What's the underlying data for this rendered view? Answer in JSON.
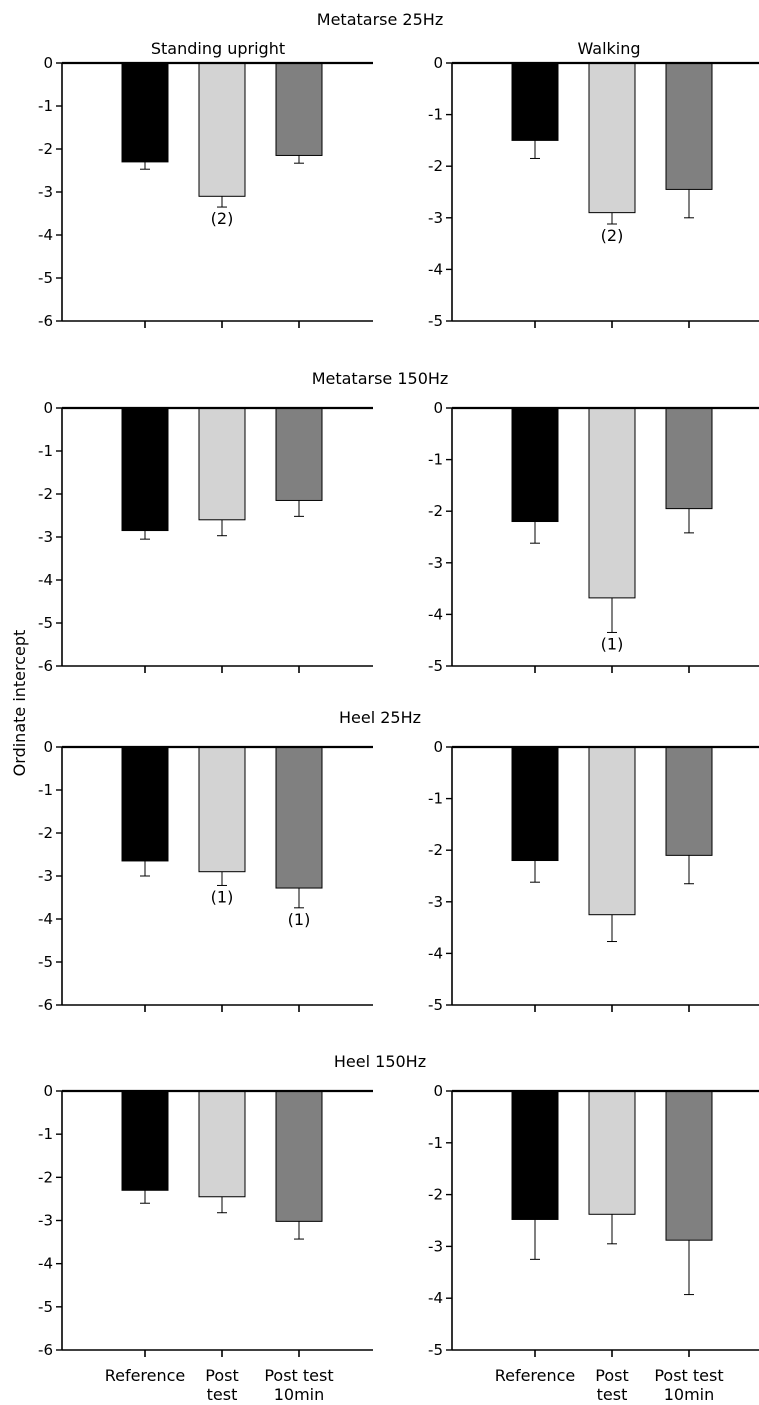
{
  "figure": {
    "ylabel": "Ordinate intercept",
    "column_titles": [
      "Standing upright",
      "Walking"
    ],
    "categories": [
      [
        "Reference"
      ],
      [
        "Post",
        "test"
      ],
      [
        "Post test",
        "10min"
      ]
    ],
    "colors": {
      "Reference": "#000000",
      "Post test": "#d3d3d3",
      "Post test 10min": "#808080"
    }
  },
  "chart_data": [
    {
      "type": "bar",
      "title": "Metatarse 25Hz",
      "subtitle": "Standing upright",
      "xlabel": "",
      "ylabel": "Ordinate intercept",
      "categories": [
        "Reference",
        "Post test",
        "Post test 10min"
      ],
      "values": [
        -2.3,
        -3.1,
        -2.15
      ],
      "error": [
        0.17,
        0.25,
        0.18
      ],
      "annotations": [
        "",
        "(2)",
        ""
      ],
      "ylim": [
        -6,
        0
      ],
      "yticks": [
        0,
        -1,
        -2,
        -3,
        -4,
        -5,
        -6
      ]
    },
    {
      "type": "bar",
      "title": "",
      "subtitle": "Walking",
      "xlabel": "",
      "ylabel": "Ordinate intercept",
      "categories": [
        "Reference",
        "Post test",
        "Post test 10min"
      ],
      "values": [
        -1.5,
        -2.9,
        -2.45
      ],
      "error": [
        0.35,
        0.22,
        0.55
      ],
      "annotations": [
        "",
        "(2)",
        ""
      ],
      "ylim": [
        -5,
        0
      ],
      "yticks": [
        0,
        -1,
        -2,
        -3,
        -4,
        -5
      ]
    },
    {
      "type": "bar",
      "title": "Metatarse 150Hz",
      "subtitle": "",
      "xlabel": "",
      "ylabel": "Ordinate intercept",
      "categories": [
        "Reference",
        "Post test",
        "Post test 10min"
      ],
      "values": [
        -2.85,
        -2.6,
        -2.15
      ],
      "error": [
        0.2,
        0.37,
        0.37
      ],
      "annotations": [
        "",
        "",
        ""
      ],
      "ylim": [
        -6,
        0
      ],
      "yticks": [
        0,
        -1,
        -2,
        -3,
        -4,
        -5,
        -6
      ]
    },
    {
      "type": "bar",
      "title": "",
      "subtitle": "",
      "xlabel": "",
      "ylabel": "Ordinate intercept",
      "categories": [
        "Reference",
        "Post test",
        "Post test 10min"
      ],
      "values": [
        -2.2,
        -3.68,
        -1.95
      ],
      "error": [
        0.42,
        0.67,
        0.47
      ],
      "annotations": [
        "",
        "(1)",
        ""
      ],
      "ylim": [
        -5,
        0
      ],
      "yticks": [
        0,
        -1,
        -2,
        -3,
        -4,
        -5
      ]
    },
    {
      "type": "bar",
      "title": "Heel 25Hz",
      "subtitle": "",
      "xlabel": "",
      "ylabel": "Ordinate intercept",
      "categories": [
        "Reference",
        "Post test",
        "Post test 10min"
      ],
      "values": [
        -2.65,
        -2.9,
        -3.28
      ],
      "error": [
        0.35,
        0.32,
        0.46
      ],
      "annotations": [
        "",
        "(1)",
        "(1)"
      ],
      "ylim": [
        -6,
        0
      ],
      "yticks": [
        0,
        -1,
        -2,
        -3,
        -4,
        -5,
        -6
      ]
    },
    {
      "type": "bar",
      "title": "",
      "subtitle": "",
      "xlabel": "",
      "ylabel": "Ordinate intercept",
      "categories": [
        "Reference",
        "Post test",
        "Post test 10min"
      ],
      "values": [
        -2.2,
        -3.25,
        -2.1
      ],
      "error": [
        0.42,
        0.52,
        0.55
      ],
      "annotations": [
        "",
        "",
        ""
      ],
      "ylim": [
        -5,
        0
      ],
      "yticks": [
        0,
        -1,
        -2,
        -3,
        -4,
        -5
      ]
    },
    {
      "type": "bar",
      "title": "Heel 150Hz",
      "subtitle": "",
      "xlabel": "",
      "ylabel": "Ordinate intercept",
      "categories": [
        "Reference",
        "Post test",
        "Post test 10min"
      ],
      "values": [
        -2.3,
        -2.45,
        -3.02
      ],
      "error": [
        0.3,
        0.37,
        0.41
      ],
      "annotations": [
        "",
        "",
        ""
      ],
      "ylim": [
        -6,
        0
      ],
      "yticks": [
        0,
        -1,
        -2,
        -3,
        -4,
        -5,
        -6
      ]
    },
    {
      "type": "bar",
      "title": "",
      "subtitle": "",
      "xlabel": "",
      "ylabel": "Ordinate intercept",
      "categories": [
        "Reference",
        "Post test",
        "Post test 10min"
      ],
      "values": [
        -2.48,
        -2.38,
        -2.88
      ],
      "error": [
        0.77,
        0.57,
        1.05
      ],
      "annotations": [
        "",
        "",
        ""
      ],
      "ylim": [
        -5,
        0
      ],
      "yticks": [
        0,
        -1,
        -2,
        -3,
        -4,
        -5
      ]
    }
  ]
}
